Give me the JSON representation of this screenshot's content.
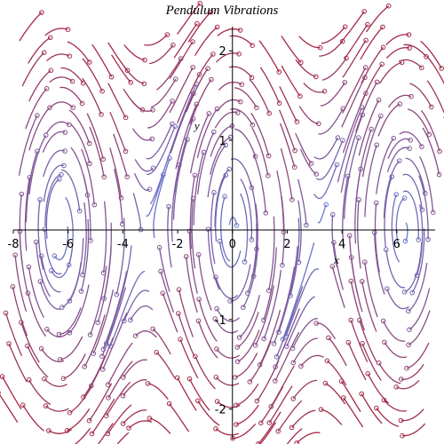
{
  "chart_data": {
    "type": "vector-field",
    "title": "Pendulum Vibrations",
    "x_label": "x",
    "y_label": "y",
    "xlim": [
      -8,
      7.4
    ],
    "ylim": [
      -2.34,
      2.27
    ],
    "xticks": [
      -8,
      -6,
      -4,
      -2,
      0,
      2,
      4,
      6
    ],
    "yticks": [
      -2,
      -1,
      1,
      2
    ]
  }
}
